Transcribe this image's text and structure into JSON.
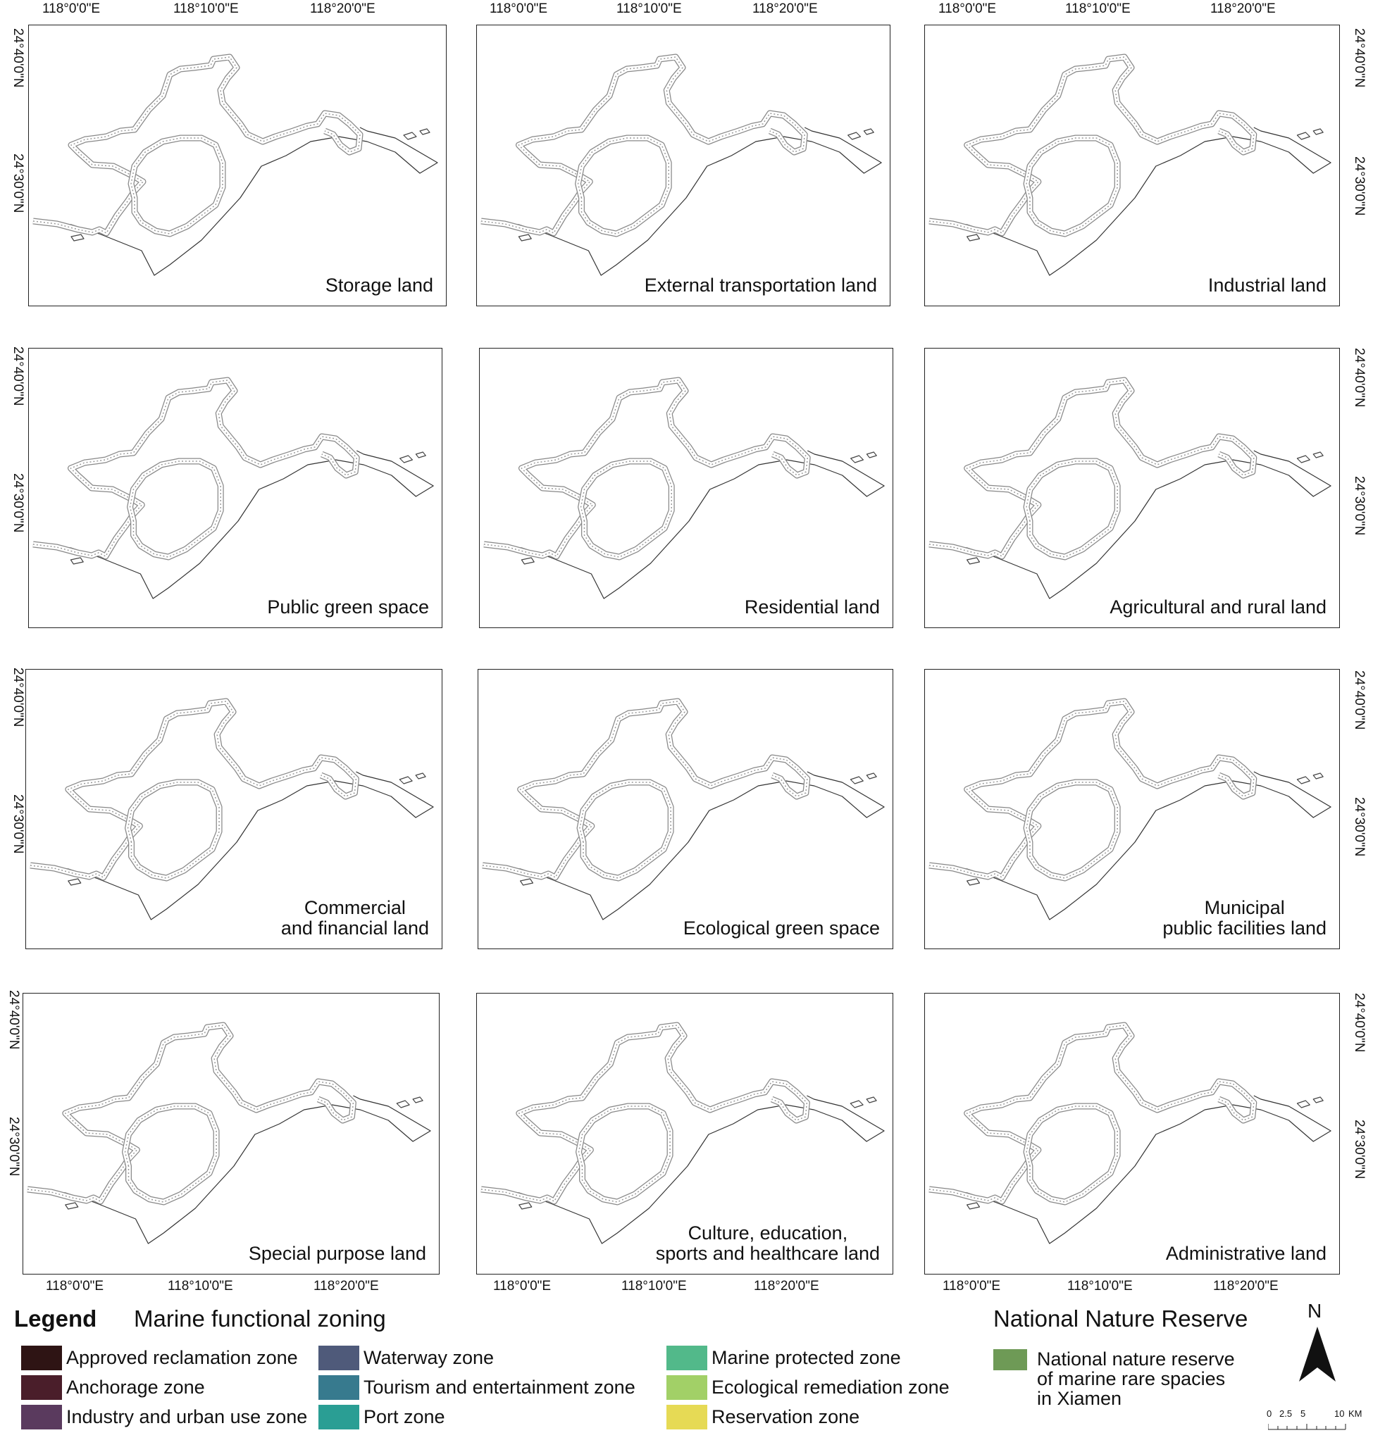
{
  "axes": {
    "lon_top": [
      "118°0'0\"E",
      "118°10'0\"E",
      "118°20'0\"E"
    ],
    "lon_bottom": [
      "118°0'0\"E",
      "118°10'0\"E",
      "118°20'0\"E"
    ],
    "lat": [
      "24°40'0\"N",
      "24°30'0\"N"
    ]
  },
  "panels": [
    {
      "label": "Storage land"
    },
    {
      "label": "External transportation land"
    },
    {
      "label": "Industrial land"
    },
    {
      "label": "Public green space"
    },
    {
      "label": "Residential land"
    },
    {
      "label": "Agricultural and rural land"
    },
    {
      "label": "Commercial\nand financial land"
    },
    {
      "label": "Ecological green space"
    },
    {
      "label": "Municipal\npublic facilities land"
    },
    {
      "label": "Special purpose land"
    },
    {
      "label": "Culture, education,\nsports and healthcare land"
    },
    {
      "label": "Administrative land"
    }
  ],
  "legend": {
    "title": "Legend",
    "marine_title": "Marine functional zoning",
    "reserve_title": "National Nature Reserve",
    "items": [
      {
        "label": "Approved reclamation zone",
        "color": "#2e1414"
      },
      {
        "label": "Anchorage zone",
        "color": "#4a1e2a"
      },
      {
        "label": "Industry and urban use zone",
        "color": "#5a3a5e"
      },
      {
        "label": "Waterway zone",
        "color": "#4f5a7a"
      },
      {
        "label": "Tourism and entertainment zone",
        "color": "#377a8e"
      },
      {
        "label": "Port zone",
        "color": "#2a9e94"
      },
      {
        "label": "Marine protected zone",
        "color": "#52b98a"
      },
      {
        "label": "Ecological remediation zone",
        "color": "#a2d067"
      },
      {
        "label": "Reservation zone",
        "color": "#e6da55"
      }
    ],
    "reserve_item": {
      "label": "National nature reserve\nof marine rare spacies\nin Xiamen",
      "color": "#6e9a56"
    }
  },
  "north_label": "N",
  "scale": {
    "ticks": [
      "0",
      "2.5",
      "5",
      "10"
    ],
    "unit": "KM"
  }
}
